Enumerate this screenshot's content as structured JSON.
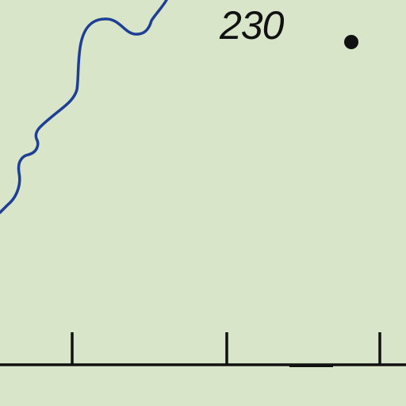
{
  "map": {
    "background_color": "#d9e5c9",
    "river_color": "#1d3f95",
    "ink_color": "#111111",
    "features": {
      "river": "stream-line",
      "spot_elevation": {
        "value": "230",
        "marker": "black-dot"
      },
      "scale_bar": {
        "tick_count": 3
      }
    }
  }
}
